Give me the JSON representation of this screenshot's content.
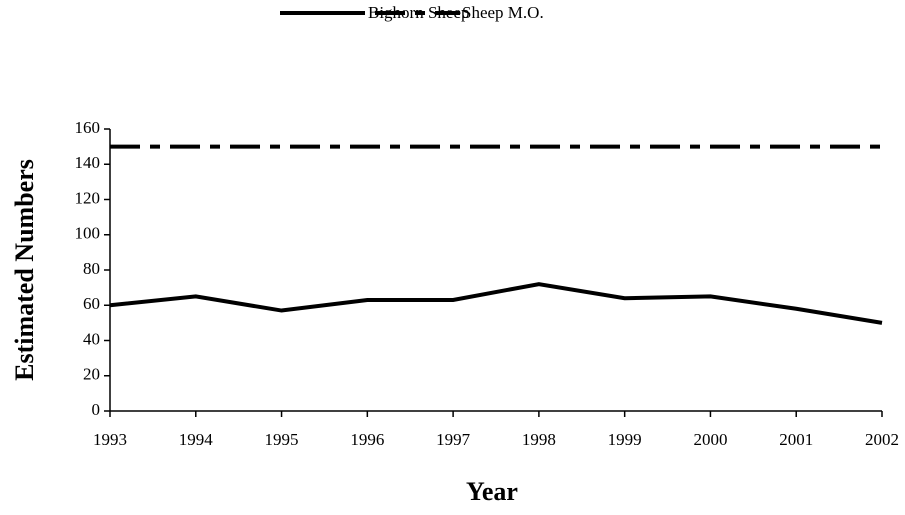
{
  "chart_data": {
    "type": "line",
    "x": [
      1993,
      1994,
      1995,
      1996,
      1997,
      1998,
      1999,
      2000,
      2001,
      2002
    ],
    "series": [
      {
        "name": "Bighorn Sheep",
        "color": "#000000",
        "values": [
          60,
          65,
          57,
          63,
          63,
          72,
          64,
          65,
          58,
          50
        ]
      },
      {
        "name": "Sheep M.O.",
        "color": "#000000",
        "values": [
          150,
          150,
          150,
          150,
          150,
          150,
          150,
          150,
          150,
          150
        ]
      }
    ],
    "xlabel": "Year",
    "ylabel": "Estimated Numbers",
    "xlim": [
      1993,
      2002
    ],
    "xticks": [
      1993,
      1994,
      1995,
      1996,
      1997,
      1998,
      1999,
      2000,
      2001,
      2002
    ],
    "ylim": [
      0,
      160
    ],
    "yticks": [
      0,
      20,
      40,
      60,
      80,
      100,
      120,
      140,
      160
    ],
    "legend": "top"
  }
}
